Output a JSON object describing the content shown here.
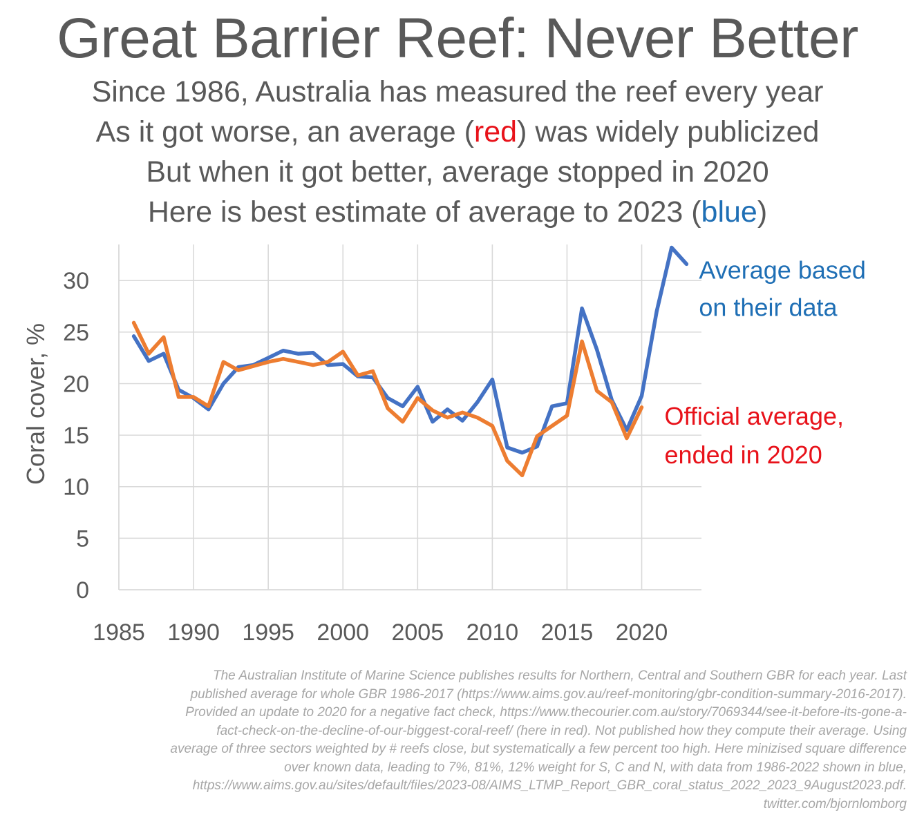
{
  "header": {
    "title": "Great Barrier Reef: Never Better",
    "line1": "Since 1986, Australia has measured the reef every year",
    "line2_before": "As it got worse, an average (",
    "line2_red": "red",
    "line2_after": ") was widely publicized",
    "line3": "But when it got better, average stopped in 2020",
    "line4_before": "Here is best estimate of average to 2023 (",
    "line4_blue": "blue",
    "line4_after": ")"
  },
  "colors": {
    "blue_series": "#4472c4",
    "orange_series": "#ed7d31",
    "blue_text": "#1f6fb5",
    "red_text": "#e8121a",
    "grid": "#d9d9d9",
    "text": "#595959"
  },
  "chart_data": {
    "type": "line",
    "title": "",
    "xlabel": "",
    "ylabel": "Coral cover, %",
    "xlim": [
      1985,
      2024
    ],
    "ylim": [
      0,
      33.5
    ],
    "xticks": [
      1985,
      1990,
      1995,
      2000,
      2005,
      2010,
      2015,
      2020
    ],
    "yticks": [
      0,
      5,
      10,
      15,
      20,
      25,
      30
    ],
    "grid": true,
    "series": [
      {
        "name": "Average based on their data",
        "color": "#4472c4",
        "x": [
          1986,
          1987,
          1988,
          1989,
          1990,
          1991,
          1992,
          1993,
          1994,
          1995,
          1996,
          1997,
          1998,
          1999,
          2000,
          2001,
          2002,
          2003,
          2004,
          2005,
          2006,
          2007,
          2008,
          2009,
          2010,
          2011,
          2012,
          2013,
          2014,
          2015,
          2016,
          2017,
          2018,
          2019,
          2020,
          2021,
          2022,
          2023
        ],
        "y": [
          24.6,
          22.2,
          22.9,
          19.4,
          18.6,
          17.5,
          20.0,
          21.6,
          21.8,
          22.5,
          23.2,
          22.9,
          23.0,
          21.8,
          21.9,
          20.7,
          20.6,
          18.6,
          17.8,
          19.7,
          16.3,
          17.5,
          16.4,
          18.2,
          20.4,
          13.8,
          13.3,
          13.9,
          17.8,
          18.1,
          27.3,
          23.3,
          18.4,
          15.5,
          18.8,
          27.0,
          33.2,
          31.6
        ]
      },
      {
        "name": "Official average, ended in 2020",
        "color": "#ed7d31",
        "x": [
          1986,
          1987,
          1988,
          1989,
          1990,
          1991,
          1992,
          1993,
          1994,
          1995,
          1996,
          1997,
          1998,
          1999,
          2000,
          2001,
          2002,
          2003,
          2004,
          2005,
          2006,
          2007,
          2008,
          2009,
          2010,
          2011,
          2012,
          2013,
          2014,
          2015,
          2016,
          2017,
          2018,
          2019,
          2020
        ],
        "y": [
          25.9,
          22.9,
          24.5,
          18.7,
          18.7,
          17.8,
          22.1,
          21.3,
          21.7,
          22.1,
          22.4,
          22.1,
          21.8,
          22.1,
          23.1,
          20.8,
          21.2,
          17.6,
          16.3,
          18.6,
          17.4,
          16.7,
          17.2,
          16.7,
          15.9,
          12.5,
          11.1,
          14.9,
          15.9,
          16.9,
          24.1,
          19.3,
          18.2,
          14.7,
          17.7
        ]
      }
    ],
    "annotations": [
      {
        "lines": [
          "Average based",
          "on their data"
        ],
        "color": "#1f6fb5",
        "series": "blue"
      },
      {
        "lines": [
          "Official average,",
          "ended in 2020"
        ],
        "color": "#e8121a",
        "series": "orange"
      }
    ]
  },
  "footnote": {
    "lines": [
      "The Australian Institute of Marine Science publishes results for Northern, Central and Southern GBR for each year. Last",
      "published average for whole GBR 1986-2017 (https://www.aims.gov.au/reef-monitoring/gbr-condition-summary-2016-2017).",
      "Provided an update to 2020 for a negative fact check, https://www.thecourier.com.au/story/7069344/see-it-before-its-gone-a-",
      "fact-check-on-the-decline-of-our-biggest-coral-reef/ (here in red). Not published how they compute their average. Using",
      "average of three sectors weighted by # reefs close, but systematically a few percent too high. Here minizised square difference",
      "over known data, leading to 7%, 81%, 12% weight for S, C and N, with data from 1986-2022 shown in blue,",
      "https://www.aims.gov.au/sites/default/files/2023-08/AIMS_LTMP_Report_GBR_coral_status_2022_2023_9August2023.pdf.",
      "twitter.com/bjornlomborg"
    ]
  }
}
